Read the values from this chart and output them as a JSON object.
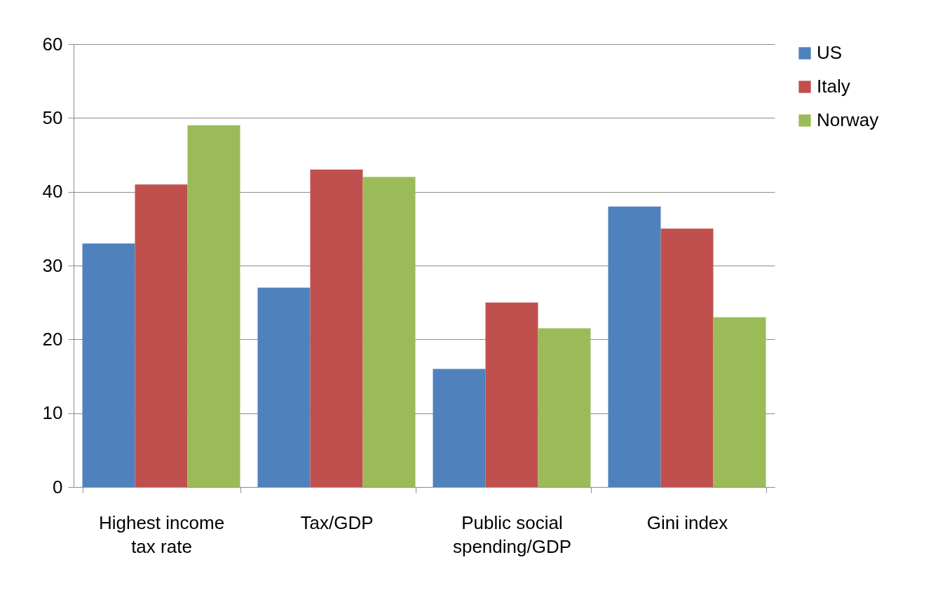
{
  "chart_data": {
    "type": "bar",
    "categories": [
      "Highest income tax rate",
      "Tax/GDP",
      "Public social spending/GDP",
      "Gini index"
    ],
    "series": [
      {
        "name": "US",
        "color": "#4f81bd",
        "values": [
          33,
          27,
          16,
          38
        ]
      },
      {
        "name": "Italy",
        "color": "#c0504d",
        "values": [
          41,
          43,
          25,
          35
        ]
      },
      {
        "name": "Norway",
        "color": "#9bbb59",
        "values": [
          49,
          42,
          21.5,
          23
        ]
      }
    ],
    "ylim": [
      0,
      60
    ],
    "yticks": [
      0,
      10,
      20,
      30,
      40,
      50,
      60
    ],
    "grid": "y",
    "legend": "right"
  }
}
